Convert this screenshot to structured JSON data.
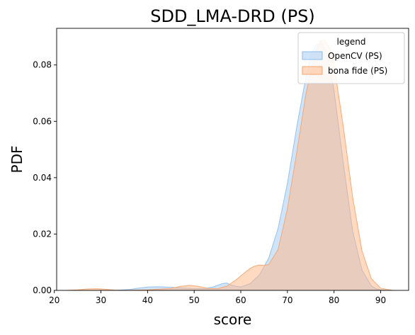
{
  "chart_data": {
    "type": "area",
    "title": "SDD_LMA-DRD (PS)",
    "xlabel": "score",
    "ylabel": "PDF",
    "xlim": [
      20.5,
      96
    ],
    "ylim": [
      0,
      0.093
    ],
    "xticks": [
      20,
      30,
      40,
      50,
      60,
      70,
      80,
      90
    ],
    "yticks": [
      0.0,
      0.02,
      0.04,
      0.06,
      0.08
    ],
    "ytick_labels": [
      "0.00",
      "0.02",
      "0.04",
      "0.06",
      "0.08"
    ],
    "grid": false,
    "legend": {
      "title": "legend",
      "placement": "top-right"
    },
    "series": [
      {
        "name": "OpenCV (PS)",
        "fill_color": "#a1c9f4",
        "line_color": "#8fbde8",
        "x": [
          33,
          36,
          38,
          40,
          42,
          44,
          46,
          48,
          50,
          52,
          54,
          56,
          57,
          58,
          60,
          62,
          64,
          66,
          68,
          70,
          72,
          74,
          75,
          76,
          77,
          78,
          79,
          80,
          82,
          84,
          86,
          88,
          89,
          90,
          92
        ],
        "y": [
          0.0,
          0.0003,
          0.0008,
          0.0012,
          0.0013,
          0.0012,
          0.001,
          0.0008,
          0.0006,
          0.0006,
          0.0012,
          0.0024,
          0.0026,
          0.0018,
          0.0012,
          0.0024,
          0.0055,
          0.0115,
          0.022,
          0.038,
          0.058,
          0.076,
          0.083,
          0.0868,
          0.0878,
          0.0858,
          0.0805,
          0.071,
          0.045,
          0.021,
          0.0072,
          0.0016,
          0.0006,
          0.0002,
          0.0
        ]
      },
      {
        "name": "bona fide (PS)",
        "fill_color": "#ffb482",
        "line_color": "#f5a46e",
        "x": [
          22.5,
          25,
          27,
          29,
          31,
          33,
          35,
          40,
          45,
          47,
          49,
          51,
          53,
          55,
          57,
          59,
          61,
          62,
          63,
          64,
          65,
          66,
          68,
          70,
          72,
          74,
          76,
          77,
          78,
          79,
          80,
          82,
          84,
          86,
          88,
          90,
          92.5
        ],
        "y": [
          0.0,
          0.0002,
          0.0005,
          0.0006,
          0.0004,
          0.0001,
          0.0,
          0.0002,
          0.0007,
          0.0014,
          0.0018,
          0.0014,
          0.0007,
          0.0006,
          0.0015,
          0.0038,
          0.0065,
          0.0078,
          0.0086,
          0.009,
          0.0089,
          0.0092,
          0.0145,
          0.029,
          0.049,
          0.07,
          0.0842,
          0.0885,
          0.0888,
          0.0862,
          0.08,
          0.058,
          0.033,
          0.014,
          0.0042,
          0.0008,
          0.0
        ]
      }
    ],
    "overlap_color": "#cfcfdc"
  }
}
